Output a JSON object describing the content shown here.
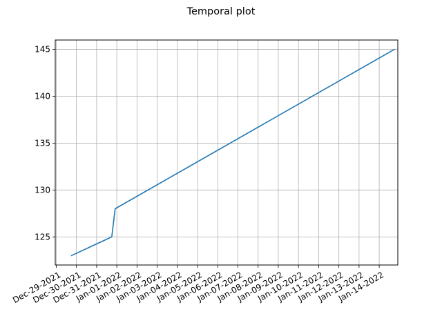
{
  "chart_data": {
    "type": "line",
    "title": "Temporal plot",
    "xlabel": "",
    "ylabel": "",
    "grid": true,
    "legend": "none",
    "line_color": "#1f77b4",
    "x_tick_labels": [
      "Dec-29-2021",
      "Dec-30-2021",
      "Dec-31-2021",
      "Jan-01-2022",
      "Jan-02-2022",
      "Jan-03-2022",
      "Jan-04-2022",
      "Jan-05-2022",
      "Jan-06-2022",
      "Jan-07-2022",
      "Jan-08-2022",
      "Jan-09-2022",
      "Jan-10-2022",
      "Jan-11-2022",
      "Jan-12-2022",
      "Jan-13-2022",
      "Jan-14-2022"
    ],
    "y_ticks": [
      125,
      130,
      135,
      140,
      145
    ],
    "xlim": [
      "2021-12-29",
      "2022-01-14"
    ],
    "ylim": [
      122,
      146
    ],
    "series": [
      {
        "x": [
          "2021-12-29T18:00",
          "2021-12-31T18:00",
          "2021-12-31T22:00",
          "2022-01-14T18:00"
        ],
        "y": [
          123,
          125,
          128,
          145
        ]
      }
    ]
  }
}
